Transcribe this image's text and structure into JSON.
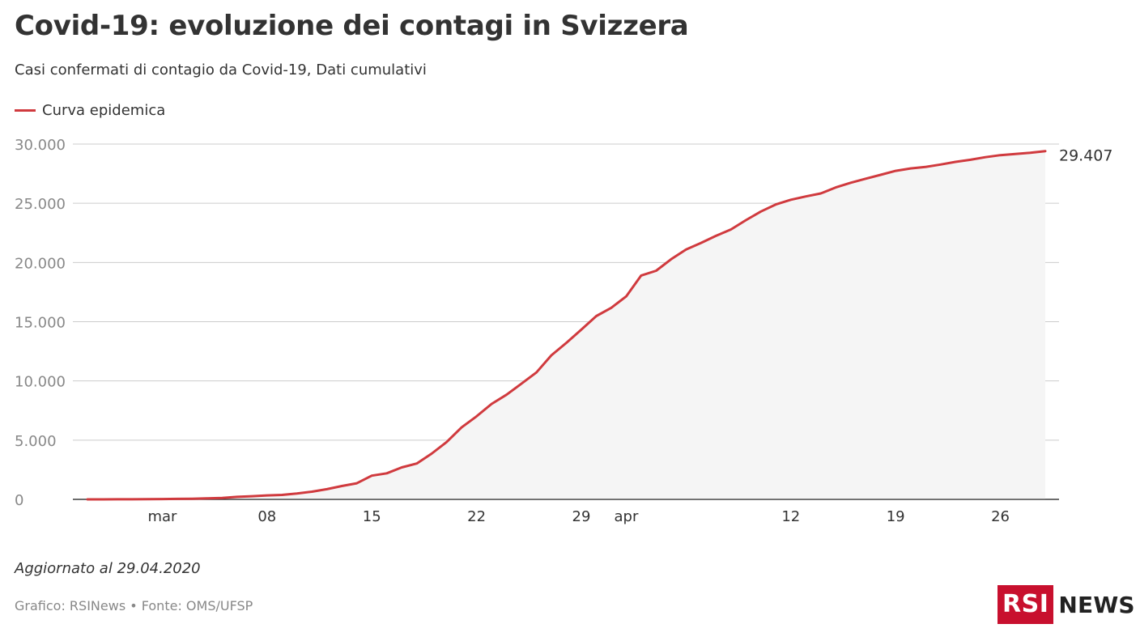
{
  "header": {
    "title": "Covid-19: evoluzione dei contagi in Svizzera",
    "subtitle": "Casi confermati di contagio da Covid-19, Dati cumulativi"
  },
  "footer": {
    "updated": "Aggiornato al 29.04.2020",
    "source": "Grafico: RSINews • Fonte: OMS/UFSP"
  },
  "logo": {
    "box_text": "RSI",
    "text": "NEWS",
    "color": "#c8102e"
  },
  "chart_data": {
    "type": "area",
    "title": "Covid-19: evoluzione dei contagi in Svizzera",
    "subtitle": "Casi confermati di contagio da Covid-19, Dati cumulativi",
    "xlabel": "",
    "ylabel": "",
    "ylim": [
      0,
      30000
    ],
    "x_range": [
      "2020-02-25",
      "2020-04-29"
    ],
    "y_ticks": [
      0,
      5000,
      10000,
      15000,
      20000,
      25000,
      30000
    ],
    "y_tick_labels": [
      "0",
      "5.000",
      "10.000",
      "15.000",
      "20.000",
      "25.000",
      "30.000"
    ],
    "x_tick_labels": [
      {
        "date": "2020-03-01",
        "label": "mar"
      },
      {
        "date": "2020-03-08",
        "label": "08"
      },
      {
        "date": "2020-03-15",
        "label": "15"
      },
      {
        "date": "2020-03-22",
        "label": "22"
      },
      {
        "date": "2020-03-29",
        "label": "29"
      },
      {
        "date": "2020-04-01",
        "label": "apr"
      },
      {
        "date": "2020-04-12",
        "label": "12"
      },
      {
        "date": "2020-04-19",
        "label": "19"
      },
      {
        "date": "2020-04-26",
        "label": "26"
      }
    ],
    "grid": true,
    "legend_position": "top-left",
    "last_value_label": "29.407",
    "series": [
      {
        "name": "Curva epidemica",
        "color": "#d03a3e",
        "fill": "#f5f5f5",
        "points": [
          [
            "2020-02-25",
            1
          ],
          [
            "2020-02-26",
            1
          ],
          [
            "2020-02-27",
            8
          ],
          [
            "2020-02-28",
            8
          ],
          [
            "2020-02-29",
            18
          ],
          [
            "2020-03-01",
            27
          ],
          [
            "2020-03-02",
            42
          ],
          [
            "2020-03-03",
            56
          ],
          [
            "2020-03-04",
            90
          ],
          [
            "2020-03-05",
            114
          ],
          [
            "2020-03-06",
            214
          ],
          [
            "2020-03-07",
            268
          ],
          [
            "2020-03-08",
            337
          ],
          [
            "2020-03-09",
            374
          ],
          [
            "2020-03-10",
            491
          ],
          [
            "2020-03-11",
            652
          ],
          [
            "2020-03-12",
            858
          ],
          [
            "2020-03-13",
            1125
          ],
          [
            "2020-03-14",
            1359
          ],
          [
            "2020-03-15",
            2000
          ],
          [
            "2020-03-16",
            2200
          ],
          [
            "2020-03-17",
            2700
          ],
          [
            "2020-03-18",
            3028
          ],
          [
            "2020-03-19",
            3863
          ],
          [
            "2020-03-20",
            4840
          ],
          [
            "2020-03-21",
            6077
          ],
          [
            "2020-03-22",
            7014
          ],
          [
            "2020-03-23",
            8060
          ],
          [
            "2020-03-24",
            8836
          ],
          [
            "2020-03-25",
            9765
          ],
          [
            "2020-03-26",
            10714
          ],
          [
            "2020-03-27",
            12161
          ],
          [
            "2020-03-28",
            13213
          ],
          [
            "2020-03-29",
            14336
          ],
          [
            "2020-03-30",
            15475
          ],
          [
            "2020-03-31",
            16176
          ],
          [
            "2020-04-01",
            17139
          ],
          [
            "2020-04-02",
            18900
          ],
          [
            "2020-04-03",
            19303
          ],
          [
            "2020-04-04",
            20278
          ],
          [
            "2020-04-05",
            21100
          ],
          [
            "2020-04-06",
            21657
          ],
          [
            "2020-04-07",
            22253
          ],
          [
            "2020-04-08",
            22789
          ],
          [
            "2020-04-09",
            23574
          ],
          [
            "2020-04-10",
            24308
          ],
          [
            "2020-04-11",
            24900
          ],
          [
            "2020-04-12",
            25300
          ],
          [
            "2020-04-13",
            25580
          ],
          [
            "2020-04-14",
            25834
          ],
          [
            "2020-04-15",
            26336
          ],
          [
            "2020-04-16",
            26732
          ],
          [
            "2020-04-17",
            27078
          ],
          [
            "2020-04-18",
            27404
          ],
          [
            "2020-04-19",
            27740
          ],
          [
            "2020-04-20",
            27944
          ],
          [
            "2020-04-21",
            28063
          ],
          [
            "2020-04-22",
            28268
          ],
          [
            "2020-04-23",
            28496
          ],
          [
            "2020-04-24",
            28677
          ],
          [
            "2020-04-25",
            28894
          ],
          [
            "2020-04-26",
            29061
          ],
          [
            "2020-04-27",
            29164
          ],
          [
            "2020-04-28",
            29264
          ],
          [
            "2020-04-29",
            29407
          ]
        ]
      }
    ]
  }
}
